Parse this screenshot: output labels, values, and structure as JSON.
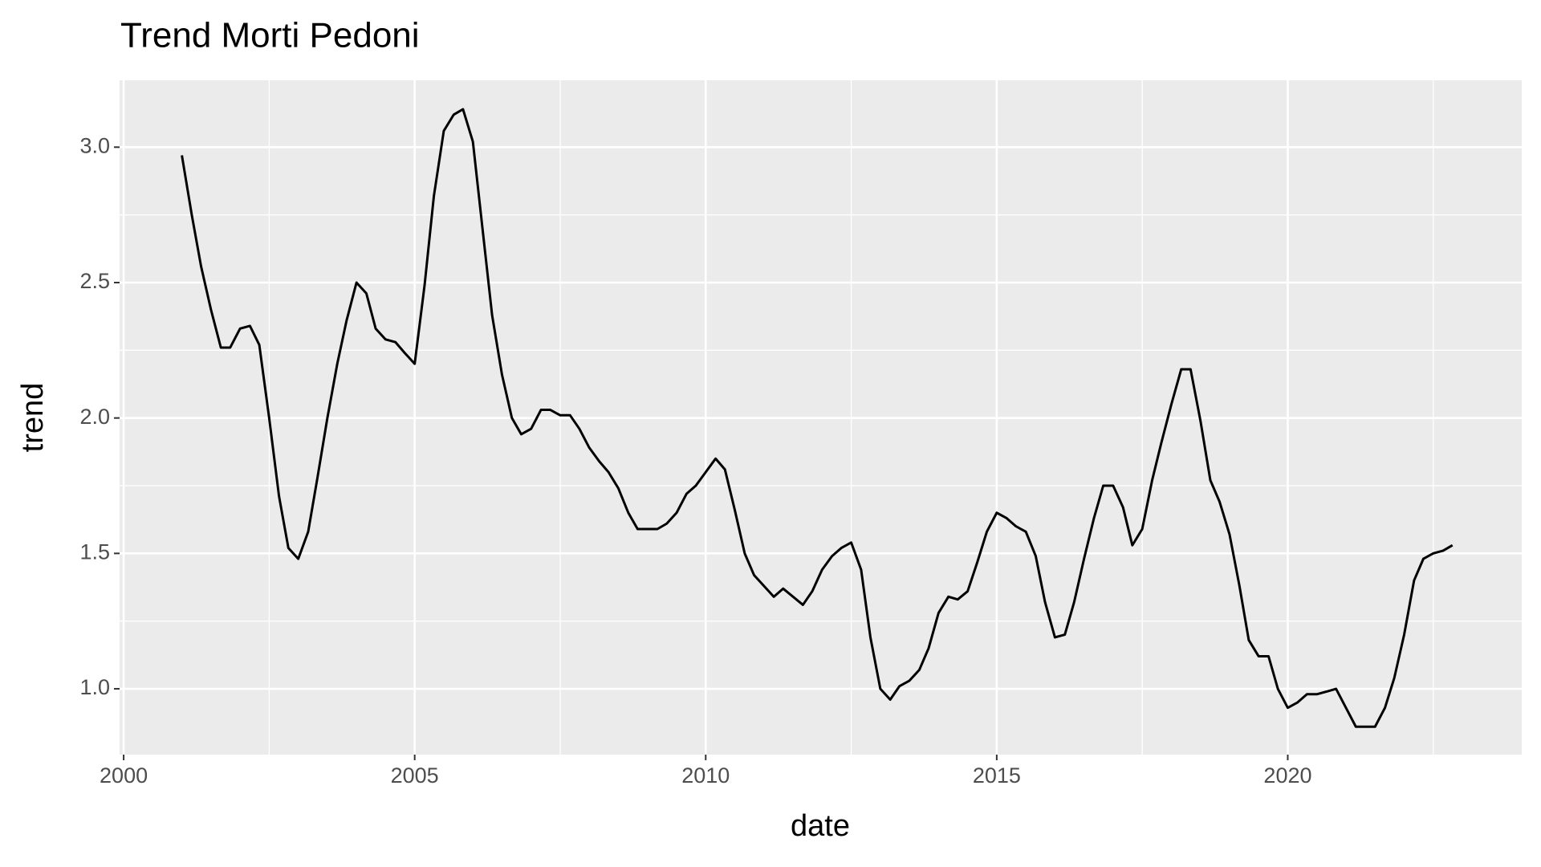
{
  "chart_data": {
    "type": "line",
    "title": "Trend Morti Pedoni",
    "x_label": "date",
    "y_label": "trend",
    "x": [
      2001,
      2001.17,
      2001.33,
      2001.5,
      2001.67,
      2001.83,
      2002,
      2002.17,
      2002.33,
      2002.5,
      2002.67,
      2002.83,
      2003,
      2003.17,
      2003.33,
      2003.5,
      2003.67,
      2003.83,
      2004,
      2004.17,
      2004.33,
      2004.5,
      2004.67,
      2004.83,
      2005,
      2005.17,
      2005.33,
      2005.5,
      2005.67,
      2005.83,
      2006,
      2006.17,
      2006.33,
      2006.5,
      2006.67,
      2006.83,
      2007,
      2007.17,
      2007.33,
      2007.5,
      2007.67,
      2007.83,
      2008,
      2008.17,
      2008.33,
      2008.5,
      2008.67,
      2008.83,
      2009,
      2009.17,
      2009.33,
      2009.5,
      2009.67,
      2009.83,
      2010,
      2010.17,
      2010.33,
      2010.5,
      2010.67,
      2010.83,
      2011,
      2011.17,
      2011.33,
      2011.5,
      2011.67,
      2011.83,
      2012,
      2012.17,
      2012.33,
      2012.5,
      2012.67,
      2012.83,
      2013,
      2013.17,
      2013.33,
      2013.5,
      2013.67,
      2013.83,
      2014,
      2014.17,
      2014.33,
      2014.5,
      2014.67,
      2014.83,
      2015,
      2015.17,
      2015.33,
      2015.5,
      2015.67,
      2015.83,
      2016,
      2016.17,
      2016.33,
      2016.5,
      2016.67,
      2016.83,
      2017,
      2017.17,
      2017.33,
      2017.5,
      2017.67,
      2017.83,
      2018,
      2018.17,
      2018.33,
      2018.5,
      2018.67,
      2018.83,
      2019,
      2019.17,
      2019.33,
      2019.5,
      2019.67,
      2019.83,
      2020,
      2020.17,
      2020.33,
      2020.5,
      2020.67,
      2020.83,
      2021,
      2021.17,
      2021.33,
      2021.5,
      2021.67,
      2021.83,
      2022,
      2022.17,
      2022.33,
      2022.5,
      2022.67,
      2022.83
    ],
    "series": [
      {
        "color": "#000000",
        "values": [
          2.97,
          2.75,
          2.56,
          2.4,
          2.26,
          2.26,
          2.33,
          2.34,
          2.27,
          2.0,
          1.71,
          1.52,
          1.48,
          1.58,
          1.78,
          2.0,
          2.2,
          2.36,
          2.5,
          2.46,
          2.33,
          2.29,
          2.28,
          2.24,
          2.2,
          2.49,
          2.82,
          3.06,
          3.12,
          3.14,
          3.02,
          2.69,
          2.38,
          2.16,
          2.0,
          1.94,
          1.96,
          2.03,
          2.03,
          2.01,
          2.01,
          1.96,
          1.89,
          1.84,
          1.8,
          1.74,
          1.65,
          1.59,
          1.59,
          1.59,
          1.61,
          1.65,
          1.72,
          1.75,
          1.8,
          1.85,
          1.81,
          1.66,
          1.5,
          1.42,
          1.38,
          1.34,
          1.37,
          1.34,
          1.31,
          1.36,
          1.44,
          1.49,
          1.52,
          1.54,
          1.44,
          1.19,
          1.0,
          0.96,
          1.01,
          1.03,
          1.07,
          1.15,
          1.28,
          1.34,
          1.33,
          1.36,
          1.47,
          1.58,
          1.65,
          1.63,
          1.6,
          1.58,
          1.49,
          1.32,
          1.19,
          1.2,
          1.32,
          1.48,
          1.63,
          1.75,
          1.75,
          1.67,
          1.53,
          1.59,
          1.77,
          1.91,
          2.05,
          2.18,
          2.18,
          1.99,
          1.77,
          1.69,
          1.57,
          1.38,
          1.18,
          1.12,
          1.12,
          1.0,
          0.93,
          0.95,
          0.98,
          0.98,
          0.99,
          1.0,
          0.93,
          0.86,
          0.86,
          0.86,
          0.93,
          1.04,
          1.2,
          1.4,
          1.48,
          1.5,
          1.51,
          1.53
        ]
      }
    ],
    "xlim": [
      1999.93,
      2024.02
    ],
    "ylim": [
      0.757,
      3.247
    ],
    "xticks": [
      2000,
      2005,
      2010,
      2015,
      2020
    ],
    "yticks": [
      {
        "value": 1,
        "label": "1.0"
      },
      1.5,
      {
        "value": 2,
        "label": "2.0"
      },
      2.5,
      {
        "value": 3,
        "label": "3.0"
      }
    ],
    "x_minor_ticks": [
      2002.5,
      2007.5,
      2012.5,
      2017.5,
      2022.5
    ],
    "y_minor_ticks": [
      1.25,
      1.75,
      2.25,
      2.75
    ],
    "grid": true
  }
}
